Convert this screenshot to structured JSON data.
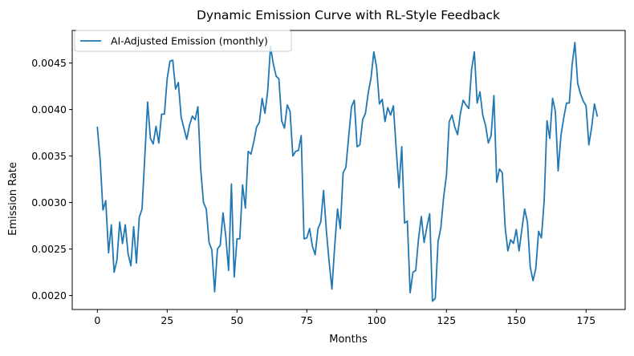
{
  "chart_data": {
    "type": "line",
    "title": "Dynamic Emission Curve with RL-Style Feedback",
    "xlabel": "Months",
    "ylabel": "Emission Rate",
    "xlim": [
      -9,
      189
    ],
    "ylim": [
      0.00185,
      0.00485
    ],
    "xticks": [
      0,
      25,
      50,
      75,
      100,
      125,
      150,
      175
    ],
    "xtick_labels": [
      "0",
      "25",
      "50",
      "75",
      "100",
      "125",
      "150",
      "175"
    ],
    "yticks": [
      0.002,
      0.0025,
      0.003,
      0.0035,
      0.004,
      0.0045
    ],
    "ytick_labels": [
      "0.0020",
      "0.0025",
      "0.0030",
      "0.0035",
      "0.0040",
      "0.0045"
    ],
    "grid": false,
    "legend_position": "top-left",
    "series": [
      {
        "name": "AI-Adjusted Emission (monthly)",
        "color": "#1f77b4",
        "x": [
          0,
          1,
          2,
          3,
          4,
          5,
          6,
          7,
          8,
          9,
          10,
          11,
          12,
          13,
          14,
          15,
          16,
          17,
          18,
          19,
          20,
          21,
          22,
          23,
          24,
          25,
          26,
          27,
          28,
          29,
          30,
          31,
          32,
          33,
          34,
          35,
          36,
          37,
          38,
          39,
          40,
          41,
          42,
          43,
          44,
          45,
          46,
          47,
          48,
          49,
          50,
          51,
          52,
          53,
          54,
          55,
          56,
          57,
          58,
          59,
          60,
          61,
          62,
          63,
          64,
          65,
          66,
          67,
          68,
          69,
          70,
          71,
          72,
          73,
          74,
          75,
          76,
          77,
          78,
          79,
          80,
          81,
          82,
          83,
          84,
          85,
          86,
          87,
          88,
          89,
          90,
          91,
          92,
          93,
          94,
          95,
          96,
          97,
          98,
          99,
          100,
          101,
          102,
          103,
          104,
          105,
          106,
          107,
          108,
          109,
          110,
          111,
          112,
          113,
          114,
          115,
          116,
          117,
          118,
          119,
          120,
          121,
          122,
          123,
          124,
          125,
          126,
          127,
          128,
          129,
          130,
          131,
          132,
          133,
          134,
          135,
          136,
          137,
          138,
          139,
          140,
          141,
          142,
          143,
          144,
          145,
          146,
          147,
          148,
          149,
          150,
          151,
          152,
          153,
          154,
          155,
          156,
          157,
          158,
          159,
          160,
          161,
          162,
          163,
          164,
          165,
          166,
          167,
          168,
          169,
          170,
          171,
          172,
          173,
          174,
          175,
          176,
          177,
          178,
          179
        ],
        "values": [
          0.00381,
          0.00346,
          0.00292,
          0.00302,
          0.00246,
          0.00276,
          0.00225,
          0.00238,
          0.00279,
          0.00256,
          0.00276,
          0.00245,
          0.00232,
          0.00274,
          0.00235,
          0.00284,
          0.00293,
          0.0035,
          0.00408,
          0.00369,
          0.00363,
          0.00382,
          0.00364,
          0.00395,
          0.00395,
          0.00433,
          0.00452,
          0.00453,
          0.00422,
          0.00429,
          0.00392,
          0.0038,
          0.00368,
          0.00383,
          0.00393,
          0.00389,
          0.00403,
          0.00336,
          0.003,
          0.00293,
          0.00257,
          0.00249,
          0.00204,
          0.0025,
          0.00254,
          0.00289,
          0.00263,
          0.00227,
          0.0032,
          0.0022,
          0.00261,
          0.00261,
          0.00319,
          0.00294,
          0.00355,
          0.00352,
          0.00365,
          0.00381,
          0.00386,
          0.00412,
          0.00396,
          0.0042,
          0.00468,
          0.00449,
          0.00436,
          0.00433,
          0.00388,
          0.0038,
          0.00405,
          0.00398,
          0.0035,
          0.00355,
          0.00356,
          0.00372,
          0.00261,
          0.00262,
          0.00272,
          0.00253,
          0.00244,
          0.00272,
          0.00279,
          0.00313,
          0.0027,
          0.00236,
          0.00207,
          0.00254,
          0.00293,
          0.00272,
          0.00332,
          0.00338,
          0.00371,
          0.00403,
          0.0041,
          0.0036,
          0.00362,
          0.00389,
          0.00396,
          0.00418,
          0.00434,
          0.00462,
          0.00445,
          0.00406,
          0.00411,
          0.00387,
          0.00402,
          0.00394,
          0.00404,
          0.00358,
          0.00316,
          0.0036,
          0.00278,
          0.0028,
          0.00203,
          0.00225,
          0.00227,
          0.00261,
          0.00285,
          0.00257,
          0.00274,
          0.00288,
          0.00194,
          0.00197,
          0.00258,
          0.00273,
          0.00306,
          0.00329,
          0.00387,
          0.00394,
          0.00381,
          0.00373,
          0.00396,
          0.0041,
          0.00405,
          0.00401,
          0.00443,
          0.00462,
          0.00407,
          0.00419,
          0.00394,
          0.00383,
          0.00364,
          0.00372,
          0.00415,
          0.00322,
          0.00336,
          0.00332,
          0.00274,
          0.00248,
          0.0026,
          0.00256,
          0.00271,
          0.00248,
          0.00271,
          0.00293,
          0.00279,
          0.00231,
          0.00216,
          0.00229,
          0.00269,
          0.00262,
          0.00302,
          0.00388,
          0.00369,
          0.00412,
          0.00398,
          0.00334,
          0.00372,
          0.00391,
          0.00407,
          0.00407,
          0.00448,
          0.00472,
          0.00428,
          0.00417,
          0.00409,
          0.00404,
          0.00362,
          0.00381,
          0.00406,
          0.00393
        ]
      }
    ]
  }
}
